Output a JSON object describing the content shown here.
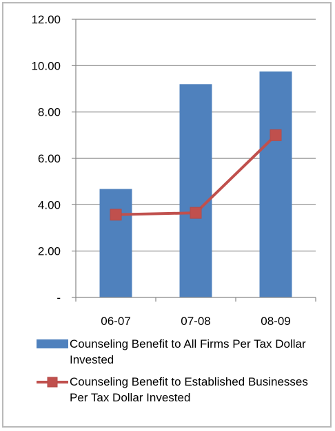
{
  "chart_data": {
    "type": "bar",
    "categories": [
      "06-07",
      "07-08",
      "08-09"
    ],
    "y_tick_labels": [
      "-",
      "2.00",
      "4.00",
      "6.00",
      "8.00",
      "10.00",
      "12.00"
    ],
    "ylim": [
      0,
      12
    ],
    "grid": true,
    "legend_position": "bottom",
    "series": [
      {
        "name": "Counseling Benefit to All Firms Per Tax Dollar Invested",
        "type": "bar",
        "color": "#4f81bd",
        "values": [
          4.68,
          9.2,
          9.75
        ]
      },
      {
        "name": "Counseling Benefit to Established Businesses Per Tax Dollar Invested",
        "type": "line",
        "marker": "square",
        "color": "#c0504d",
        "values": [
          3.57,
          3.65,
          7.0
        ]
      }
    ]
  }
}
